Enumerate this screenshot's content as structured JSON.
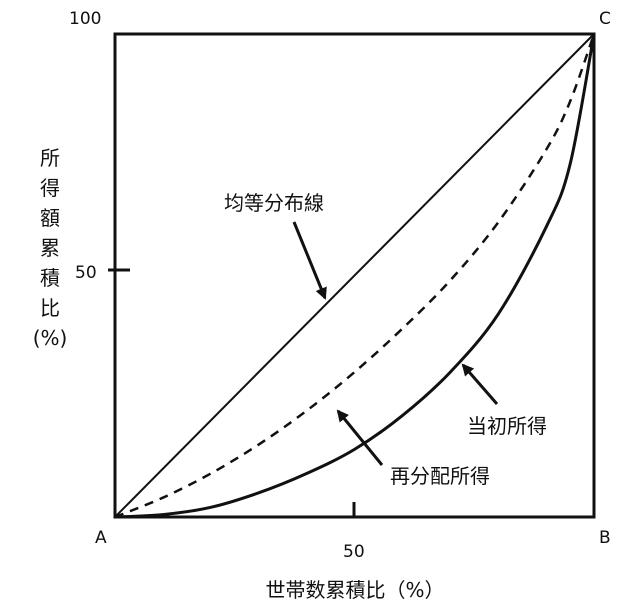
{
  "chart_data": {
    "type": "line",
    "title": "",
    "xlabel": "世帯数累積比（%）",
    "ylabel_chars": [
      "所",
      "得",
      "額",
      "累",
      "積",
      "比",
      "(%)"
    ],
    "xlim": [
      0,
      100
    ],
    "ylim": [
      0,
      100
    ],
    "x_ticks": [
      {
        "value": 50,
        "label": "50"
      }
    ],
    "y_ticks": [
      {
        "value": 50,
        "label": "50"
      },
      {
        "value": 100,
        "label": "100"
      }
    ],
    "corner_labels": {
      "A": "A",
      "B": "B",
      "C": "C"
    },
    "grid": false,
    "legend": "none",
    "series": [
      {
        "name": "均等分布線",
        "style": "solid-thin",
        "x": [
          0,
          100
        ],
        "y": [
          0,
          100
        ]
      },
      {
        "name": "再分配所得",
        "style": "dashed",
        "x": [
          0,
          10,
          20,
          30,
          40,
          50,
          60,
          70,
          80,
          90,
          95,
          100
        ],
        "y": [
          0,
          4,
          9,
          15,
          22,
          30,
          39,
          49,
          61,
          76,
          86,
          100
        ]
      },
      {
        "name": "当初所得",
        "style": "solid-thick",
        "x": [
          0,
          10,
          20,
          30,
          40,
          50,
          60,
          70,
          80,
          90,
          95,
          100
        ],
        "y": [
          0,
          0.5,
          2,
          5,
          9,
          14,
          21,
          30,
          42,
          60,
          73,
          100
        ]
      }
    ],
    "annotations": [
      {
        "text": "均等分布線",
        "target_series": 0
      },
      {
        "text": "当初所得",
        "target_series": 2
      },
      {
        "text": "再分配所得",
        "target_series": 1
      }
    ]
  }
}
